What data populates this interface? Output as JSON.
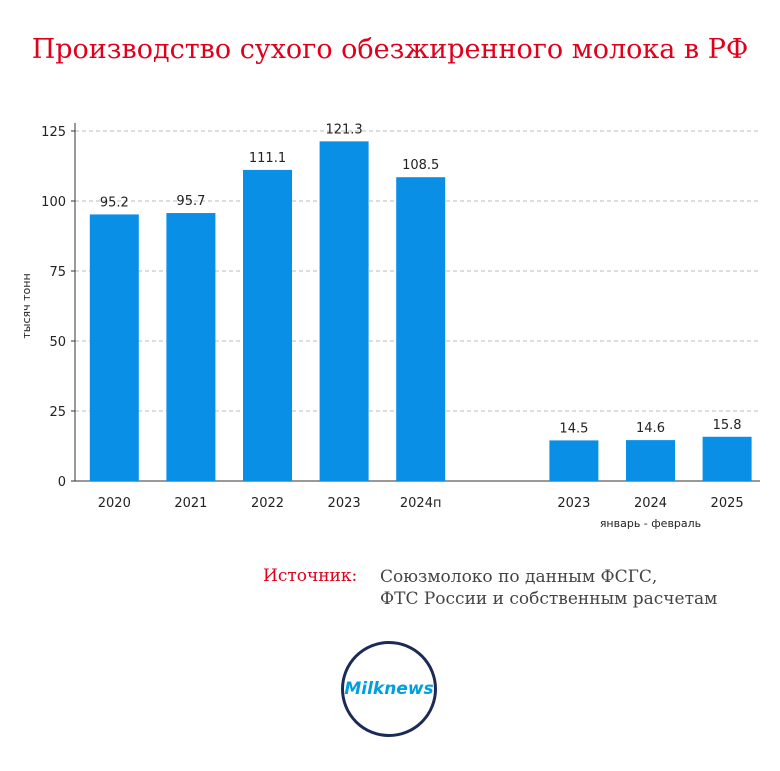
{
  "title": "Производство сухого обезжиренного молока в РФ",
  "source": {
    "label": "Источник:",
    "line1": "Союзмолоко по данным ФСГС,",
    "line2": "ФТС России и собственным расчетам"
  },
  "logo": {
    "text": "Milknews"
  },
  "colors": {
    "bar": "#0a8fe6",
    "title": "#e0001b",
    "axis": "#333333",
    "grid": "#bbbbbb"
  },
  "chart_data": {
    "type": "bar",
    "ylabel": "тысяч тонн",
    "ylim": [
      0,
      125
    ],
    "yticks": [
      0,
      25,
      50,
      75,
      100,
      125
    ],
    "grid": true,
    "groups": [
      {
        "label": "",
        "categories": [
          "2020",
          "2021",
          "2022",
          "2023",
          "2024п"
        ],
        "values": [
          95.2,
          95.7,
          111.1,
          121.3,
          108.5
        ]
      },
      {
        "label": "январь - февраль",
        "categories": [
          "2023",
          "2024",
          "2025"
        ],
        "values": [
          14.5,
          14.6,
          15.8
        ]
      }
    ]
  }
}
